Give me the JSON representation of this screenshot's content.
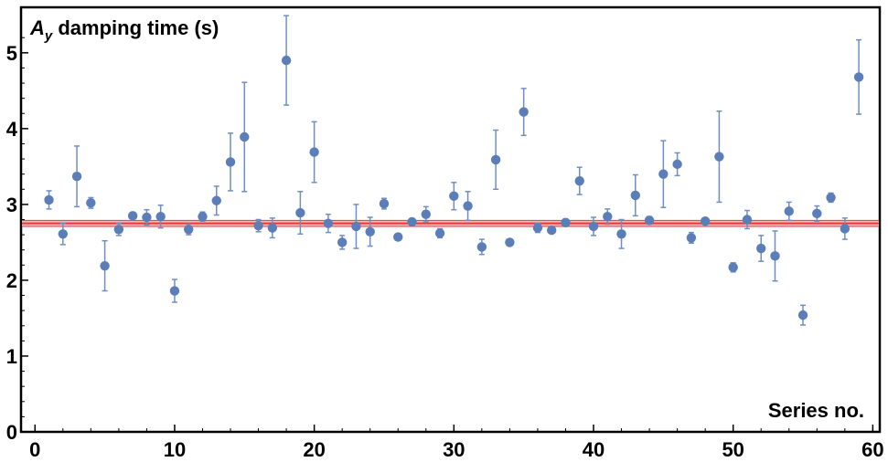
{
  "chart_data": {
    "type": "scatter",
    "title_main": "A",
    "title_sub": "y",
    "title_rest": " damping time (s)",
    "xlabel": "Series no.",
    "xlim": [
      -1,
      60.5
    ],
    "ylim": [
      0,
      5.6
    ],
    "xticks": [
      0,
      10,
      20,
      30,
      40,
      50,
      60
    ],
    "yticks": [
      0,
      1,
      2,
      3,
      4,
      5
    ],
    "grid": false,
    "colors": {
      "points": "#5b7db8",
      "errorbars": "#6f8fc2",
      "mean_line": "#e8393c",
      "mean_band": "#f4b6b6",
      "frame": "#000000"
    },
    "series": [
      {
        "x": [
          1,
          2,
          3,
          4,
          5,
          6,
          7,
          8,
          9,
          10,
          11,
          12,
          13,
          14,
          15,
          16,
          17,
          18,
          19,
          20,
          21,
          22,
          23,
          24,
          25,
          26,
          27,
          28,
          29,
          30,
          31,
          32,
          33,
          34,
          35,
          36,
          37,
          38,
          39,
          40,
          41,
          42,
          43,
          44,
          45,
          46,
          47,
          48,
          49,
          50,
          51,
          52,
          53,
          54,
          55,
          56,
          57,
          58,
          59
        ],
        "y": [
          3.06,
          2.61,
          3.37,
          3.02,
          2.19,
          2.67,
          2.85,
          2.83,
          2.84,
          1.86,
          2.67,
          2.84,
          3.05,
          3.56,
          3.89,
          2.72,
          2.69,
          4.9,
          2.89,
          3.69,
          2.75,
          2.5,
          2.71,
          2.64,
          3.01,
          2.57,
          2.77,
          2.87,
          2.62,
          3.11,
          2.98,
          2.44,
          3.59,
          2.5,
          4.22,
          2.69,
          2.66,
          2.76,
          3.31,
          2.71,
          2.84,
          2.61,
          3.12,
          2.79,
          3.4,
          3.53,
          2.56,
          2.78,
          3.63,
          2.17,
          2.8,
          2.42,
          2.32,
          2.91,
          1.54,
          2.88,
          3.09,
          2.68,
          4.68
        ],
        "err": [
          0.12,
          0.14,
          0.4,
          0.07,
          0.33,
          0.08,
          0.04,
          0.1,
          0.15,
          0.15,
          0.07,
          0.06,
          0.19,
          0.38,
          0.72,
          0.08,
          0.13,
          0.59,
          0.28,
          0.4,
          0.12,
          0.09,
          0.29,
          0.19,
          0.07,
          0.04,
          0.04,
          0.1,
          0.06,
          0.18,
          0.19,
          0.1,
          0.39,
          0.04,
          0.31,
          0.06,
          0.04,
          0.05,
          0.18,
          0.12,
          0.1,
          0.19,
          0.27,
          0.05,
          0.44,
          0.15,
          0.07,
          0.04,
          0.6,
          0.06,
          0.12,
          0.17,
          0.33,
          0.12,
          0.13,
          0.1,
          0.06,
          0.14,
          0.49
        ]
      }
    ],
    "mean": {
      "value": 2.75,
      "band": [
        2.71,
        2.79
      ]
    }
  }
}
